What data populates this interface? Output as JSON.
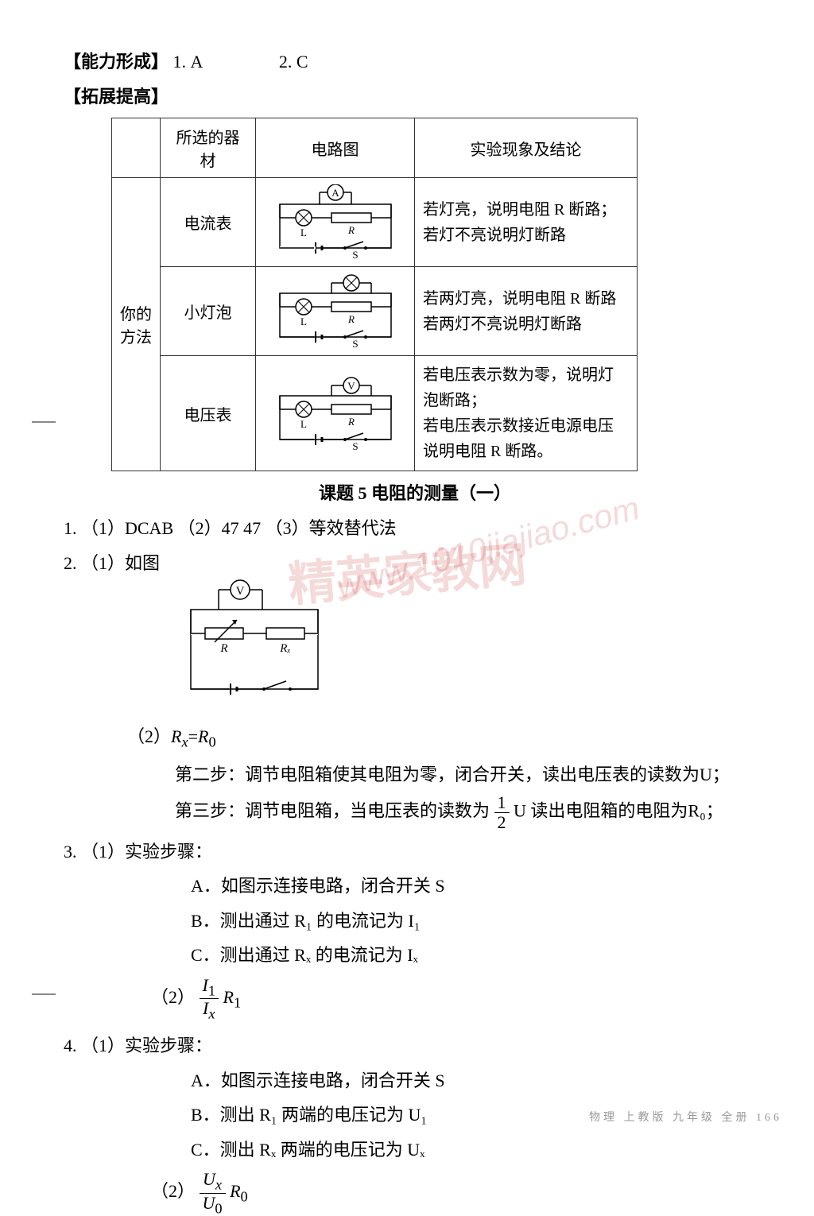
{
  "header": {
    "section1_label": "【能力形成】",
    "s1_q1": "1.  A",
    "s1_q2": "2.  C",
    "section2_label": "【拓展提高】"
  },
  "table": {
    "headers": {
      "c1": "",
      "c2": "所选的器材",
      "c3": "电路图",
      "c4": "实验现象及结论"
    },
    "row_label": "你的\n方法",
    "rows": [
      {
        "equip": "电流表",
        "circuit": {
          "meter": "A",
          "meter_pos": "top",
          "has_extra_lamp": false
        },
        "conclusion": "若灯亮，说明电阻 R 断路；\n若灯不亮说明灯断路"
      },
      {
        "equip": "小灯泡",
        "circuit": {
          "meter": "lamp",
          "meter_pos": "top-right",
          "has_extra_lamp": true
        },
        "conclusion": "若两灯亮，说明电阻 R 断路\n若两灯不亮说明灯断路"
      },
      {
        "equip": "电压表",
        "circuit": {
          "meter": "V",
          "meter_pos": "top",
          "has_extra_lamp": false
        },
        "conclusion": "若电压表示数为零，说明灯泡断路；\n若电压表示数接近电源电压说明电阻 R 断路。"
      }
    ]
  },
  "topic": {
    "title": "课题 5   电阻的测量（一）"
  },
  "q1": {
    "prefix": "1.  （1）DCAB    （2）47   47   （3）等效替代法"
  },
  "q2": {
    "line1": "2.  （1）如图",
    "line2_prefix": "（2）",
    "rx_expr_html": "<span class=\"italic\">R<sub>x</sub></span>=<span class=\"italic\">R</span><sub>0</sub>",
    "step2": "第二步：调节电阻箱使其电阻为零，闭合开关，读出电压表的读数为U；",
    "step3_a": "第三步：调节电阻箱，当电压表的读数为",
    "step3_frac_num": "1",
    "step3_frac_den": "2",
    "step3_b": "U 读出电阻箱的电阻为R₀；"
  },
  "q3": {
    "head": "3.  （1）实验步骤：",
    "a": "A．如图示连接电路，闭合开关 S",
    "b": "B．测出通过 R₁ 的电流记为 I₁",
    "c": "C．测出通过 Rₓ 的电流记为 Iₓ",
    "f2": "（2）",
    "frac_num_html": "<span class=\"italic\">I</span><sub>1</sub>",
    "frac_den_html": "<span class=\"italic\">I<sub>x</sub></span>",
    "after_html": "<span class=\"italic\">R</span><sub>1</sub>"
  },
  "q4": {
    "head": "4.  （1）实验步骤：",
    "a": "A．如图示连接电路，闭合开关 S",
    "b": "B．测出 R₁ 两端的电压记为 U₁",
    "c": "C．测出 Rₓ 两端的电压记为 Uₓ",
    "f2": "（2）",
    "frac_num_html": "<span class=\"italic\">U<sub>x</sub></span>",
    "frac_den_html": "<span class=\"italic\">U</span><sub>0</sub>",
    "after_html": "<span class=\"italic\">R</span><sub>0</sub>"
  },
  "footer": "物理   上教版   九年级   全册   166",
  "watermark1": "精英家教网",
  "watermark2": "www.1010jiajiao.com",
  "colors": {
    "text": "#222222",
    "border": "#333333",
    "watermark": "rgba(200,50,50,0.18)"
  }
}
